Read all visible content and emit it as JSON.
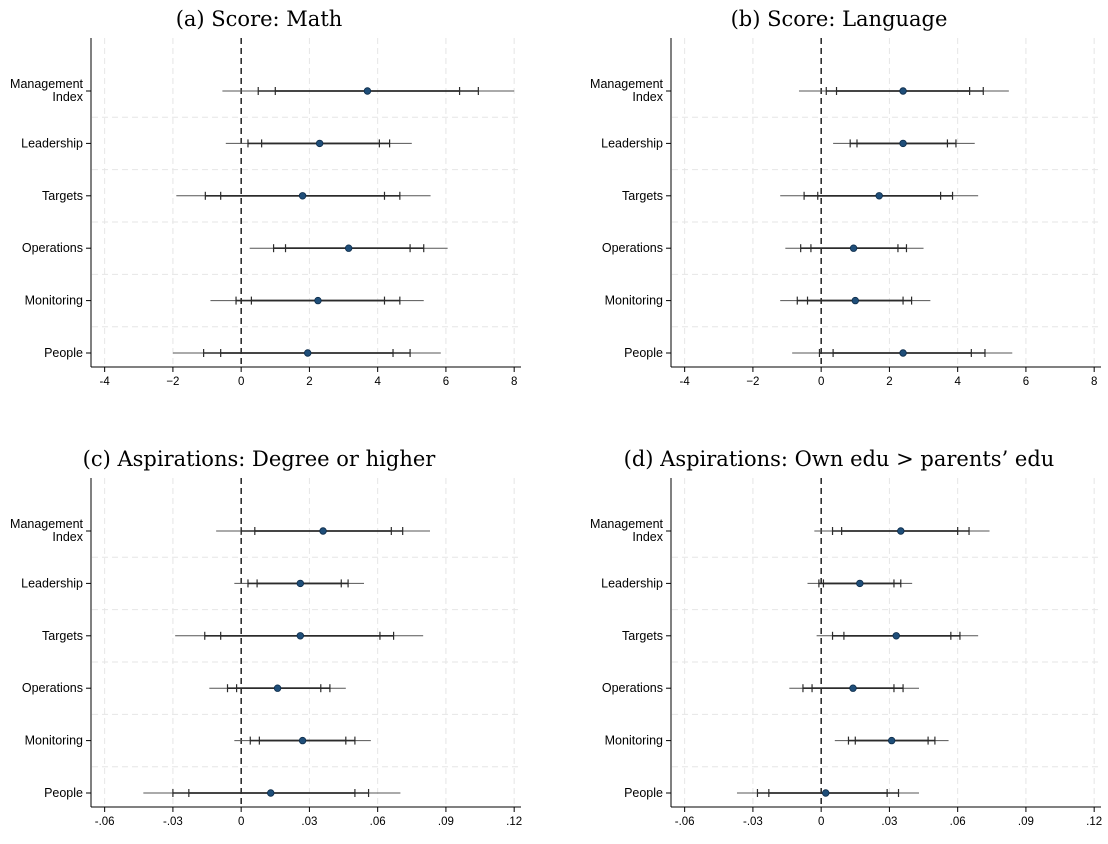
{
  "chart_data": [
    {
      "type": "scatter",
      "title": "(a) Score: Math",
      "categories": [
        "Management Index",
        "Leadership",
        "Targets",
        "Operations",
        "Monitoring",
        "People"
      ],
      "xlim": [
        -4.4,
        8.2
      ],
      "xticks": [
        -4,
        -2,
        0,
        2,
        4,
        6,
        8
      ],
      "xtick_labels": [
        "-4",
        "−2",
        "0",
        "2",
        "4",
        "6",
        "8"
      ],
      "estimates": [
        3.7,
        2.3,
        1.8,
        3.15,
        2.25,
        1.95
      ],
      "ci90": [
        [
          1.0,
          6.4
        ],
        [
          0.6,
          4.05
        ],
        [
          -0.6,
          4.2
        ],
        [
          1.3,
          4.95
        ],
        [
          0.3,
          4.2
        ],
        [
          -0.6,
          4.45
        ]
      ],
      "ci95": [
        [
          0.5,
          6.95
        ],
        [
          0.2,
          4.35
        ],
        [
          -1.05,
          4.65
        ],
        [
          0.95,
          5.35
        ],
        [
          -0.15,
          4.65
        ],
        [
          -1.1,
          4.95
        ]
      ],
      "ci99": [
        [
          -0.55,
          8.0
        ],
        [
          -0.45,
          5.0
        ],
        [
          -1.9,
          5.55
        ],
        [
          0.25,
          6.05
        ],
        [
          -0.9,
          5.35
        ],
        [
          -2.0,
          5.85
        ]
      ],
      "reference_line": 0,
      "grid": true
    },
    {
      "type": "scatter",
      "title": "(b) Score: Language",
      "categories": [
        "Management Index",
        "Leadership",
        "Targets",
        "Operations",
        "Monitoring",
        "People"
      ],
      "xlim": [
        -4.4,
        8.2
      ],
      "xticks": [
        -4,
        -2,
        0,
        2,
        4,
        6,
        8
      ],
      "xtick_labels": [
        "-4",
        "−2",
        "0",
        "2",
        "4",
        "6",
        "8"
      ],
      "estimates": [
        2.4,
        2.4,
        1.7,
        0.95,
        1.0,
        2.4
      ],
      "ci90": [
        [
          0.45,
          4.35
        ],
        [
          1.05,
          3.7
        ],
        [
          -0.1,
          3.5
        ],
        [
          -0.3,
          2.25
        ],
        [
          -0.4,
          2.4
        ],
        [
          0.35,
          4.4
        ]
      ],
      "ci95": [
        [
          0.15,
          4.75
        ],
        [
          0.85,
          3.95
        ],
        [
          -0.5,
          3.85
        ],
        [
          -0.6,
          2.5
        ],
        [
          -0.7,
          2.65
        ],
        [
          -0.05,
          4.8
        ]
      ],
      "ci99": [
        [
          -0.65,
          5.5
        ],
        [
          0.35,
          4.5
        ],
        [
          -1.2,
          4.6
        ],
        [
          -1.05,
          3.0
        ],
        [
          -1.2,
          3.2
        ],
        [
          -0.85,
          5.6
        ]
      ],
      "reference_line": 0,
      "grid": true
    },
    {
      "type": "scatter",
      "title": "(c) Aspirations: Degree or higher",
      "categories": [
        "Management Index",
        "Leadership",
        "Targets",
        "Operations",
        "Monitoring",
        "People"
      ],
      "xlim": [
        -0.066,
        0.123
      ],
      "xticks": [
        -0.06,
        -0.03,
        0,
        0.03,
        0.06,
        0.09,
        0.12
      ],
      "xtick_labels": [
        "-.06",
        "-.03",
        "0",
        ".03",
        ".06",
        ".09",
        ".12"
      ],
      "estimates": [
        0.036,
        0.026,
        0.026,
        0.016,
        0.027,
        0.013
      ],
      "ci90": [
        [
          0.006,
          0.066
        ],
        [
          0.007,
          0.044
        ],
        [
          -0.009,
          0.061
        ],
        [
          -0.002,
          0.035
        ],
        [
          0.008,
          0.046
        ],
        [
          -0.023,
          0.05
        ]
      ],
      "ci95": [
        [
          0.0,
          0.071
        ],
        [
          0.003,
          0.047
        ],
        [
          -0.016,
          0.067
        ],
        [
          -0.006,
          0.039
        ],
        [
          0.004,
          0.05
        ],
        [
          -0.03,
          0.056
        ]
      ],
      "ci99": [
        [
          -0.011,
          0.083
        ],
        [
          -0.003,
          0.054
        ],
        [
          -0.029,
          0.08
        ],
        [
          -0.014,
          0.046
        ],
        [
          -0.003,
          0.057
        ],
        [
          -0.043,
          0.07
        ]
      ],
      "reference_line": 0,
      "grid": true
    },
    {
      "type": "scatter",
      "title": "(d) Aspirations: Own edu > parents’ edu",
      "categories": [
        "Management Index",
        "Leadership",
        "Targets",
        "Operations",
        "Monitoring",
        "People"
      ],
      "xlim": [
        -0.066,
        0.123
      ],
      "xticks": [
        -0.06,
        -0.03,
        0,
        0.03,
        0.06,
        0.09,
        0.12
      ],
      "xtick_labels": [
        "-.06",
        "-.03",
        "0",
        ".03",
        ".06",
        ".09",
        ".12"
      ],
      "estimates": [
        0.035,
        0.017,
        0.033,
        0.014,
        0.031,
        0.002
      ],
      "ci90": [
        [
          0.009,
          0.06
        ],
        [
          0.001,
          0.032
        ],
        [
          0.01,
          0.057
        ],
        [
          -0.004,
          0.032
        ],
        [
          0.015,
          0.047
        ],
        [
          -0.023,
          0.029
        ]
      ],
      "ci95": [
        [
          0.005,
          0.065
        ],
        [
          -0.001,
          0.035
        ],
        [
          0.005,
          0.061
        ],
        [
          -0.008,
          0.036
        ],
        [
          0.012,
          0.05
        ],
        [
          -0.028,
          0.034
        ]
      ],
      "ci99": [
        [
          -0.003,
          0.074
        ],
        [
          -0.006,
          0.04
        ],
        [
          -0.002,
          0.069
        ],
        [
          -0.014,
          0.043
        ],
        [
          0.006,
          0.056
        ],
        [
          -0.037,
          0.043
        ]
      ],
      "reference_line": 0,
      "grid": true
    }
  ]
}
